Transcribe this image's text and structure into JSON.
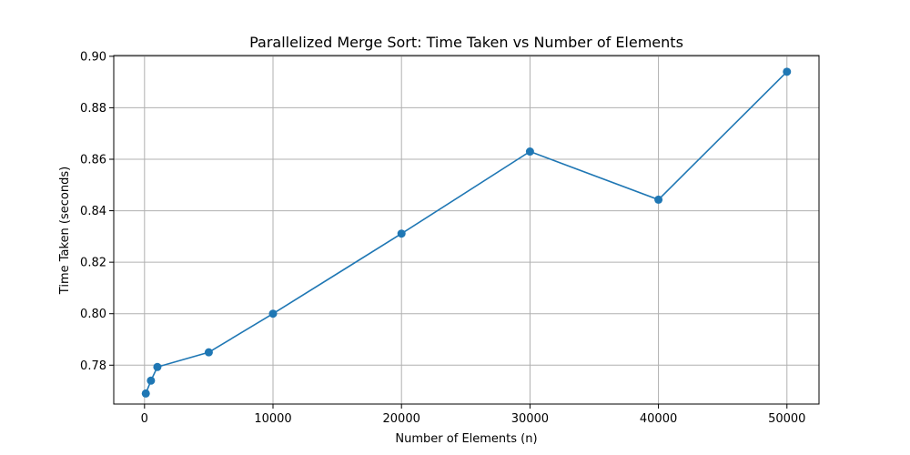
{
  "chart_data": {
    "type": "line",
    "title": "Parallelized Merge Sort: Time Taken vs Number of Elements",
    "xlabel": "Number of Elements (n)",
    "ylabel": "Time Taken (seconds)",
    "xlim": [
      -2395,
      52495
    ],
    "ylim": [
      0.7649,
      0.9003
    ],
    "x_ticks": [
      0,
      10000,
      20000,
      30000,
      40000,
      50000
    ],
    "y_ticks": [
      0.78,
      0.8,
      0.82,
      0.84,
      0.86,
      0.88,
      0.9
    ],
    "x_tick_labels": [
      "0",
      "10000",
      "20000",
      "30000",
      "40000",
      "50000"
    ],
    "y_tick_labels": [
      "0.78",
      "0.80",
      "0.82",
      "0.84",
      "0.86",
      "0.88",
      "0.90"
    ],
    "grid": true,
    "legend": "none",
    "series": [
      {
        "color": "#1f77b4",
        "marker": "circle",
        "x": [
          100,
          500,
          1000,
          5000,
          10000,
          20000,
          30000,
          40000,
          50000
        ],
        "y": [
          0.769,
          0.774,
          0.7793,
          0.785,
          0.8,
          0.8311,
          0.863,
          0.8443,
          0.894
        ]
      }
    ]
  }
}
